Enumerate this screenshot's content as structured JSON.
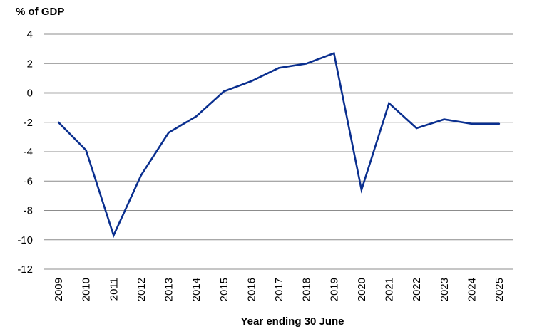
{
  "chart_data": {
    "type": "line",
    "title": "",
    "ylabel": "% of GDP",
    "xlabel": "Year ending 30 June",
    "ylim": [
      -12,
      4
    ],
    "yticks": [
      4,
      2,
      0,
      -2,
      -4,
      -6,
      -8,
      -10,
      -12
    ],
    "categories": [
      "2009",
      "2010",
      "2011",
      "2012",
      "2013",
      "2014",
      "2015",
      "2016",
      "2017",
      "2018",
      "2019",
      "2020",
      "2021",
      "2022",
      "2023",
      "2024",
      "2025"
    ],
    "series": [
      {
        "values": [
          -2.0,
          -3.9,
          -9.7,
          -5.6,
          -2.7,
          -1.6,
          0.1,
          0.8,
          1.7,
          2.0,
          2.7,
          -6.6,
          -0.7,
          -2.4,
          -1.8,
          -2.1,
          -2.1
        ]
      }
    ],
    "grid": true,
    "legend": "none",
    "colors": {
      "line": "#0a2f8f",
      "grid": "#8c8c8c",
      "zero_line": "#595959"
    }
  }
}
